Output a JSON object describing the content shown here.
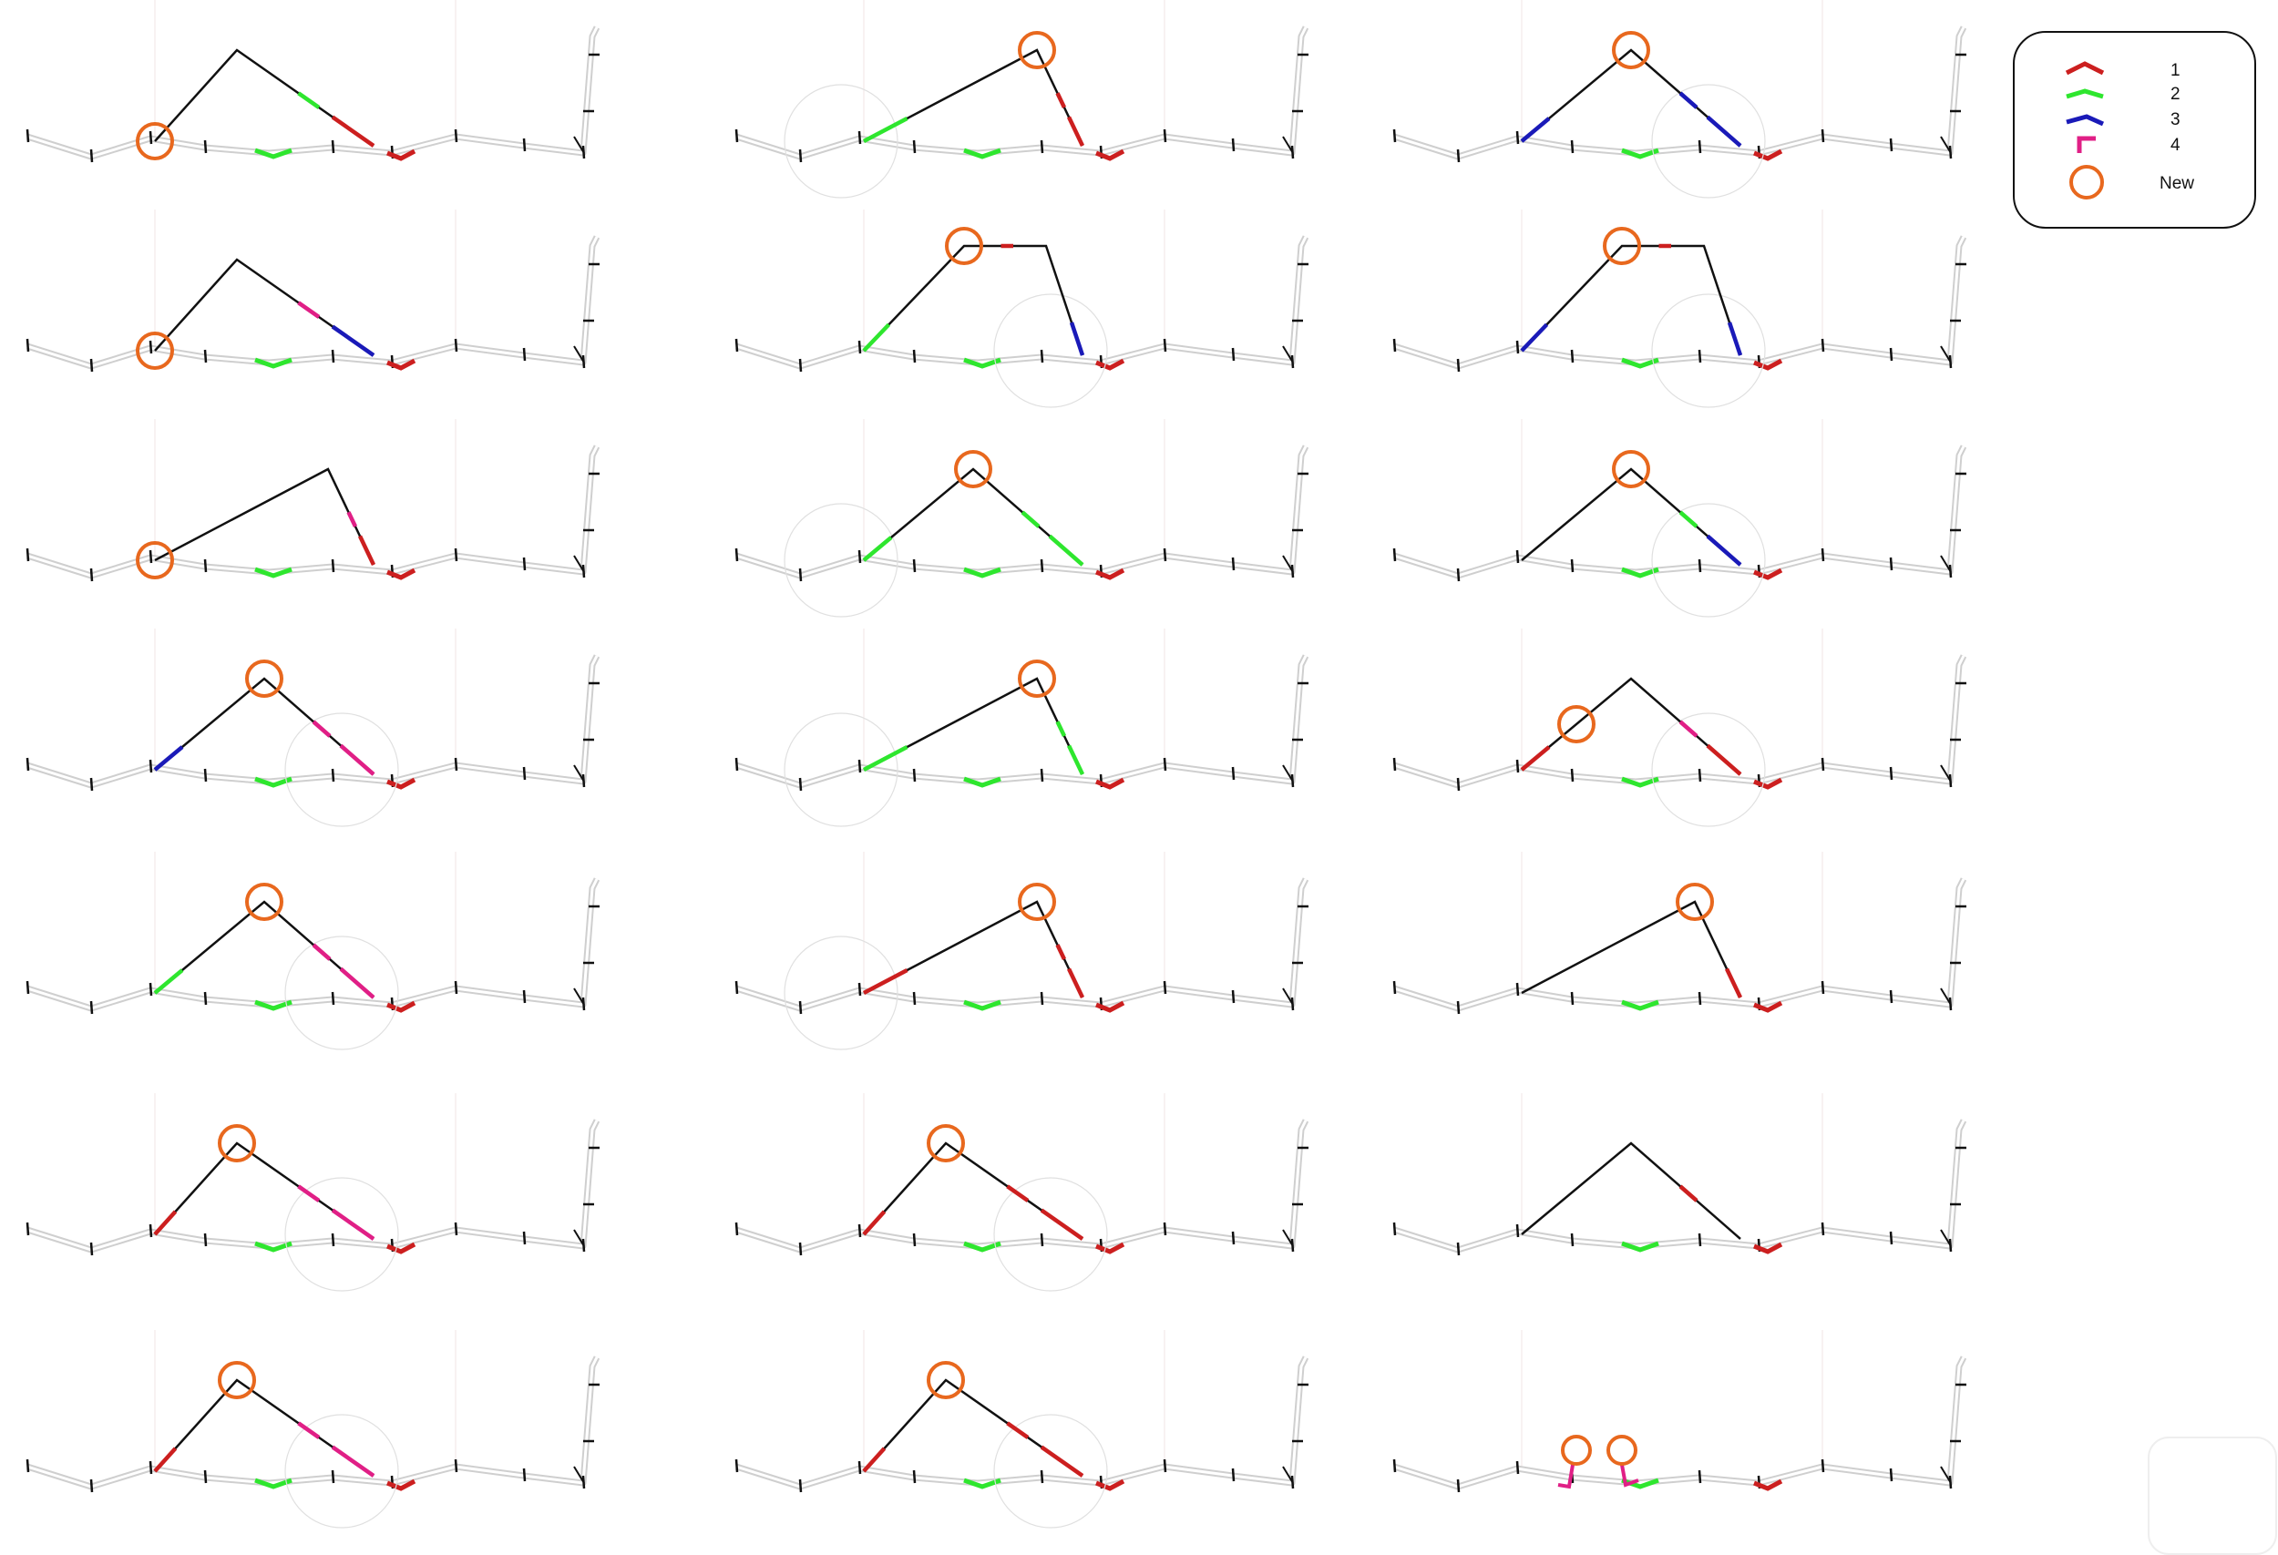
{
  "colors": {
    "mode_1": "#cc1f1f",
    "mode_2": "#2ee62e",
    "mode_3": "#1a1ab8",
    "mode_4": "#e01f86",
    "new": "#e8681e",
    "path": "#111111",
    "track": "#cfcfcf"
  },
  "legend": {
    "items": [
      {
        "label": "1",
        "icon": "red-caret-icon"
      },
      {
        "label": "2",
        "icon": "green-caret-icon"
      },
      {
        "label": "3",
        "icon": "blue-caret-icon"
      },
      {
        "label": "4",
        "icon": "pink-hook-icon"
      },
      {
        "label": "New",
        "icon": "orange-circle-icon"
      }
    ]
  },
  "grid": {
    "columns": 3,
    "rows": 7
  },
  "panels": [
    {
      "circle": "start",
      "apex": "left",
      "ghost": false,
      "colors": [
        "#111111",
        "#2ee62e",
        "#cc1f1f"
      ]
    },
    {
      "circle": "apex",
      "apex": "right",
      "ghost": true,
      "colors": [
        "#2ee62e",
        "#cc1f1f",
        "#cc1f1f"
      ]
    },
    {
      "circle": "apex",
      "apex": "center",
      "ghost": true,
      "colors": [
        "#1a1ab8",
        "#1a1ab8",
        "#1a1ab8"
      ]
    },
    {
      "circle": "start",
      "apex": "left",
      "ghost": false,
      "colors": [
        "#111111",
        "#e01f86",
        "#1a1ab8"
      ]
    },
    {
      "circle": "apex",
      "apex": "flat",
      "ghost": true,
      "colors": [
        "#2ee62e",
        "#cc1f1f",
        "#1a1ab8"
      ]
    },
    {
      "circle": "apex",
      "apex": "flat",
      "ghost": true,
      "colors": [
        "#1a1ab8",
        "#cc1f1f",
        "#1a1ab8"
      ]
    },
    {
      "circle": "start",
      "apex": "right",
      "ghost": false,
      "colors": [
        "#111111",
        "#e01f86",
        "#cc1f1f"
      ]
    },
    {
      "circle": "apex",
      "apex": "center",
      "ghost": true,
      "colors": [
        "#2ee62e",
        "#2ee62e",
        "#2ee62e"
      ]
    },
    {
      "circle": "apex",
      "apex": "center",
      "ghost": true,
      "colors": [
        "#111111",
        "#2ee62e",
        "#1a1ab8"
      ]
    },
    {
      "circle": "apex",
      "apex": "center",
      "ghost": true,
      "colors": [
        "#1a1ab8",
        "#e01f86",
        "#e01f86"
      ]
    },
    {
      "circle": "apex",
      "apex": "right",
      "ghost": true,
      "colors": [
        "#2ee62e",
        "#2ee62e",
        "#2ee62e"
      ]
    },
    {
      "circle": "mid",
      "apex": "center",
      "ghost": true,
      "colors": [
        "#cc1f1f",
        "#e01f86",
        "#cc1f1f"
      ]
    },
    {
      "circle": "apex",
      "apex": "center",
      "ghost": true,
      "colors": [
        "#2ee62e",
        "#e01f86",
        "#e01f86"
      ]
    },
    {
      "circle": "apex",
      "apex": "right",
      "ghost": true,
      "colors": [
        "#cc1f1f",
        "#cc1f1f",
        "#cc1f1f"
      ]
    },
    {
      "circle": "apex",
      "apex": "right",
      "ghost": false,
      "colors": [
        "#111111",
        "#111111",
        "#cc1f1f"
      ]
    },
    {
      "circle": "apex",
      "apex": "left",
      "ghost": true,
      "colors": [
        "#cc1f1f",
        "#e01f86",
        "#e01f86"
      ]
    },
    {
      "circle": "apex",
      "apex": "left",
      "ghost": true,
      "colors": [
        "#cc1f1f",
        "#cc1f1f",
        "#cc1f1f"
      ]
    },
    {
      "circle": "none",
      "apex": "center",
      "ghost": false,
      "colors": [
        "#111111",
        "#cc1f1f",
        "#111111"
      ]
    },
    {
      "circle": "apex",
      "apex": "left",
      "ghost": true,
      "colors": [
        "#cc1f1f",
        "#e01f86",
        "#e01f86"
      ]
    },
    {
      "circle": "apex",
      "apex": "left",
      "ghost": true,
      "colors": [
        "#cc1f1f",
        "#cc1f1f",
        "#cc1f1f"
      ]
    },
    {
      "circle": "double",
      "apex": "none",
      "ghost": false,
      "colors": [
        "#e01f86",
        "#e01f86",
        "#e01f86"
      ]
    }
  ]
}
